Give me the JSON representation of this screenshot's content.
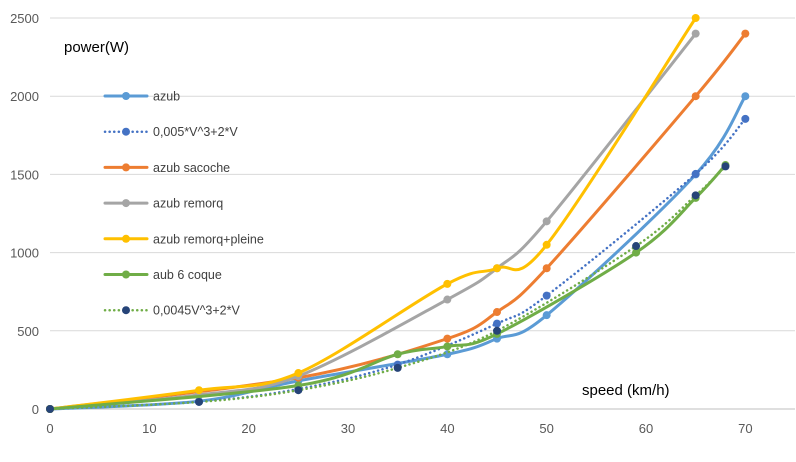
{
  "chart_data": {
    "type": "line",
    "title": "",
    "xlabel": "speed (km/h)",
    "ylabel": "power(W)",
    "xlim": [
      0,
      75
    ],
    "ylim": [
      0,
      2500
    ],
    "x_ticks": [
      "0",
      "10",
      "20",
      "30",
      "40",
      "50",
      "60",
      "70"
    ],
    "y_ticks": [
      "0",
      "500",
      "1000",
      "1500",
      "2000",
      "2500"
    ],
    "grid": "horizontal",
    "legend_position": "inside-top-left",
    "series": [
      {
        "name": "azub",
        "color": "#5B9BD5",
        "style": "solid",
        "points": [
          [
            0,
            0
          ],
          [
            15,
            50
          ],
          [
            25,
            180
          ],
          [
            40,
            350
          ],
          [
            45,
            450
          ],
          [
            50,
            600
          ],
          [
            65,
            1500
          ],
          [
            70,
            2000
          ]
        ]
      },
      {
        "name": "0,005*V^3+2*V",
        "color": "#4472C4",
        "style": "dotted",
        "points": [
          [
            0,
            0
          ],
          [
            15,
            47
          ],
          [
            25,
            128
          ],
          [
            35,
            284
          ],
          [
            45,
            546
          ],
          [
            50,
            725
          ],
          [
            65,
            1503
          ],
          [
            70,
            1855
          ]
        ]
      },
      {
        "name": "azub sacoche",
        "color": "#ED7D31",
        "style": "solid",
        "points": [
          [
            0,
            0
          ],
          [
            25,
            200
          ],
          [
            40,
            450
          ],
          [
            45,
            620
          ],
          [
            50,
            900
          ],
          [
            65,
            2000
          ],
          [
            70,
            2400
          ]
        ]
      },
      {
        "name": "azub remorq",
        "color": "#A5A5A5",
        "style": "solid",
        "points": [
          [
            0,
            0
          ],
          [
            15,
            90
          ],
          [
            25,
            210
          ],
          [
            40,
            700
          ],
          [
            45,
            900
          ],
          [
            50,
            1200
          ],
          [
            65,
            2400
          ]
        ]
      },
      {
        "name": "azub remorq+pleine",
        "color": "#FFC000",
        "style": "solid",
        "points": [
          [
            0,
            0
          ],
          [
            15,
            120
          ],
          [
            25,
            230
          ],
          [
            40,
            800
          ],
          [
            45,
            900
          ],
          [
            50,
            1050
          ],
          [
            65,
            2500
          ]
        ]
      },
      {
        "name": "aub 6 coque",
        "color": "#70AD47",
        "style": "solid",
        "points": [
          [
            0,
            0
          ],
          [
            25,
            150
          ],
          [
            35,
            350
          ],
          [
            40,
            400
          ],
          [
            45,
            480
          ],
          [
            59,
            1000
          ],
          [
            65,
            1350
          ],
          [
            68,
            1560
          ]
        ]
      },
      {
        "name": "0,0045V^3+2*V",
        "color": "#70AD47",
        "marker_color": "#264478",
        "style": "dotted",
        "points": [
          [
            0,
            0
          ],
          [
            15,
            45
          ],
          [
            25,
            120
          ],
          [
            35,
            263
          ],
          [
            45,
            500
          ],
          [
            59,
            1042
          ],
          [
            65,
            1366
          ],
          [
            68,
            1551
          ]
        ]
      }
    ]
  }
}
